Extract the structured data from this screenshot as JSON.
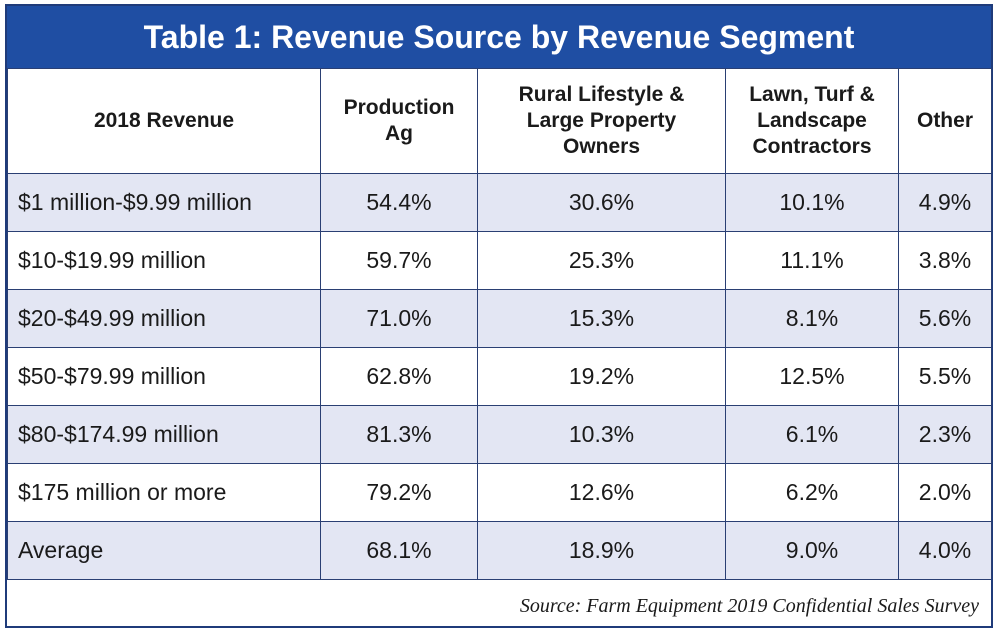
{
  "chart_data": {
    "type": "table",
    "title": "Table 1: Revenue Source by Revenue Segment",
    "columns": [
      "2018 Revenue",
      "Production\nAg",
      "Rural Lifestyle &\nLarge Property\nOwners",
      "Lawn, Turf &\nLandscape\nContractors",
      "Other"
    ],
    "rows": [
      [
        "$1 million-$9.99 million",
        "54.4%",
        "30.6%",
        "10.1%",
        "4.9%"
      ],
      [
        "$10-$19.99 million",
        "59.7%",
        "25.3%",
        "11.1%",
        "3.8%"
      ],
      [
        "$20-$49.99 million",
        "71.0%",
        "15.3%",
        "8.1%",
        "5.6%"
      ],
      [
        "$50-$79.99 million",
        "62.8%",
        "19.2%",
        "12.5%",
        "5.5%"
      ],
      [
        "$80-$174.99 million",
        "81.3%",
        "10.3%",
        "6.1%",
        "2.3%"
      ],
      [
        "$175 million or more",
        "79.2%",
        "12.6%",
        "6.2%",
        "2.0%"
      ],
      [
        "Average",
        "68.1%",
        "18.9%",
        "9.0%",
        "4.0%"
      ]
    ],
    "source": "Source: Farm Equipment 2019 Confidential Sales Survey"
  },
  "colors": {
    "header_bg": "#1f4ea3",
    "shaded_row": "#e3e6f3",
    "border": "#2a3f73"
  }
}
